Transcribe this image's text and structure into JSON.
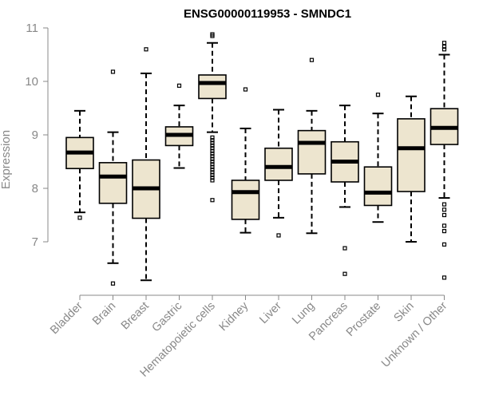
{
  "chart_data": {
    "type": "boxplot",
    "title": "ENSG00000119953 - SMNDC1",
    "xlabel": "",
    "ylabel": "Expression",
    "ylim": [
      6.0,
      11.0
    ],
    "yticks": [
      7,
      8,
      9,
      10,
      11
    ],
    "categories": [
      "Bladder",
      "Brain",
      "Breast",
      "Gastric",
      "Hematopoietic cells",
      "Kidney",
      "Liver",
      "Lung",
      "Pancreas",
      "Prostate",
      "Skin",
      "Unknown / Other"
    ],
    "series": [
      {
        "name": "Bladder",
        "whisker_low": 7.55,
        "q1": 8.37,
        "median": 8.67,
        "q3": 8.95,
        "whisker_high": 9.45,
        "outliers": [
          7.45
        ]
      },
      {
        "name": "Brain",
        "whisker_low": 6.6,
        "q1": 7.72,
        "median": 8.22,
        "q3": 8.48,
        "whisker_high": 9.05,
        "outliers": [
          10.18,
          6.22
        ]
      },
      {
        "name": "Breast",
        "whisker_low": 6.28,
        "q1": 7.44,
        "median": 8.0,
        "q3": 8.53,
        "whisker_high": 10.15,
        "outliers": [
          10.6
        ]
      },
      {
        "name": "Gastric",
        "whisker_low": 8.38,
        "q1": 8.8,
        "median": 9.0,
        "q3": 9.15,
        "whisker_high": 9.55,
        "outliers": [
          9.92
        ]
      },
      {
        "name": "Hematopoietic cells",
        "whisker_low": 9.05,
        "q1": 9.68,
        "median": 9.97,
        "q3": 10.12,
        "whisker_high": 10.72,
        "outliers": [
          10.88,
          10.85,
          8.95,
          8.9,
          8.85,
          8.8,
          8.75,
          8.7,
          8.65,
          8.6,
          8.55,
          8.5,
          8.45,
          8.4,
          8.35,
          8.3,
          8.25,
          8.2,
          8.15,
          7.78
        ]
      },
      {
        "name": "Kidney",
        "whisker_low": 7.17,
        "q1": 7.42,
        "median": 7.93,
        "q3": 8.15,
        "whisker_high": 9.12,
        "outliers": [
          9.85
        ]
      },
      {
        "name": "Liver",
        "whisker_low": 7.45,
        "q1": 8.15,
        "median": 8.4,
        "q3": 8.75,
        "whisker_high": 9.47,
        "outliers": [
          7.12
        ]
      },
      {
        "name": "Lung",
        "whisker_low": 7.16,
        "q1": 8.27,
        "median": 8.85,
        "q3": 9.08,
        "whisker_high": 9.45,
        "outliers": [
          10.4
        ]
      },
      {
        "name": "Pancreas",
        "whisker_low": 7.65,
        "q1": 8.12,
        "median": 8.5,
        "q3": 8.87,
        "whisker_high": 9.55,
        "outliers": [
          6.88,
          6.4
        ]
      },
      {
        "name": "Prostate",
        "whisker_low": 7.37,
        "q1": 7.68,
        "median": 7.92,
        "q3": 8.4,
        "whisker_high": 9.4,
        "outliers": [
          9.75
        ]
      },
      {
        "name": "Skin",
        "whisker_low": 7.0,
        "q1": 7.94,
        "median": 8.75,
        "q3": 9.3,
        "whisker_high": 9.72,
        "outliers": []
      },
      {
        "name": "Unknown / Other",
        "whisker_low": 7.82,
        "q1": 8.82,
        "median": 9.13,
        "q3": 9.49,
        "whisker_high": 10.5,
        "outliers": [
          10.72,
          10.65,
          10.6,
          7.7,
          7.6,
          7.5,
          7.3,
          7.2,
          6.95,
          6.33
        ]
      }
    ]
  }
}
